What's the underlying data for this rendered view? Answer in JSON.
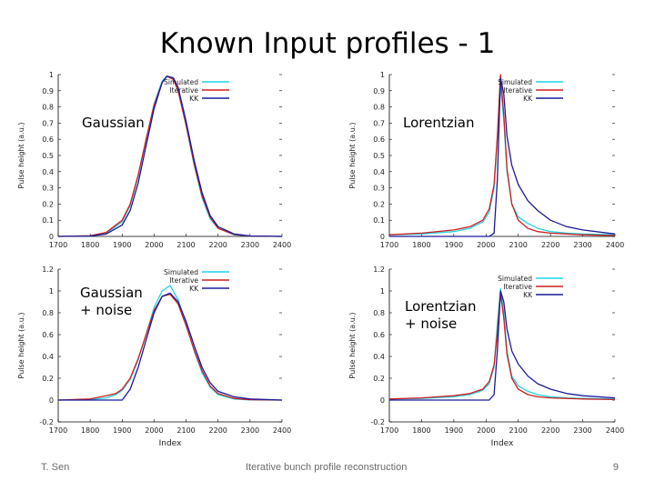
{
  "slide": {
    "title": "Known Input profiles - 1",
    "footer_left": "T. Sen",
    "footer_center": "Iterative bunch profile reconstruction",
    "page_number": "9"
  },
  "colors": {
    "simulated": "#1ed4e6",
    "iterative": "#cc2020",
    "kk": "#1a1a9a"
  },
  "chart_data": [
    {
      "type": "line",
      "overlay_label": "Gaussian",
      "xlabel": "",
      "ylabel": "Pulse height (a.u.)",
      "xlim": [
        1700,
        2400
      ],
      "ylim": [
        0,
        1
      ],
      "xticks": [
        1700,
        1800,
        1900,
        2000,
        2100,
        2200,
        2300,
        2400
      ],
      "yticks": [
        0,
        0.1,
        0.2,
        0.3,
        0.4,
        0.5,
        0.6,
        0.7,
        0.8,
        0.9,
        1
      ],
      "x": [
        1700,
        1800,
        1850,
        1900,
        1925,
        1950,
        1975,
        2000,
        2025,
        2040,
        2060,
        2075,
        2100,
        2125,
        2150,
        2175,
        2200,
        2250,
        2300,
        2400
      ],
      "series": [
        {
          "name": "Simulated",
          "color": "#1ed4e6",
          "values": [
            0,
            0.003,
            0.02,
            0.09,
            0.19,
            0.37,
            0.6,
            0.82,
            0.96,
            0.99,
            0.97,
            0.9,
            0.68,
            0.44,
            0.24,
            0.11,
            0.05,
            0.01,
            0.002,
            0
          ]
        },
        {
          "name": "Iterative",
          "color": "#cc2020",
          "values": [
            0,
            0.004,
            0.025,
            0.1,
            0.2,
            0.38,
            0.6,
            0.81,
            0.95,
            0.99,
            0.97,
            0.9,
            0.69,
            0.45,
            0.25,
            0.12,
            0.05,
            0.012,
            0.002,
            0
          ]
        },
        {
          "name": "KK",
          "color": "#1a1a9a",
          "values": [
            0,
            0.002,
            0.015,
            0.07,
            0.16,
            0.33,
            0.56,
            0.79,
            0.95,
            0.99,
            0.98,
            0.92,
            0.71,
            0.47,
            0.27,
            0.13,
            0.06,
            0.015,
            0.003,
            0
          ]
        }
      ]
    },
    {
      "type": "line",
      "overlay_label": "Lorentzian",
      "xlabel": "",
      "ylabel": "Pulse height (a.u.)",
      "xlim": [
        1700,
        2400
      ],
      "ylim": [
        0,
        1
      ],
      "xticks": [
        1700,
        1800,
        1900,
        2000,
        2100,
        2200,
        2300,
        2400
      ],
      "yticks": [
        0,
        0.1,
        0.2,
        0.3,
        0.4,
        0.5,
        0.6,
        0.7,
        0.8,
        0.9,
        1
      ],
      "x": [
        1700,
        1800,
        1900,
        1950,
        1990,
        2010,
        2025,
        2035,
        2045,
        2055,
        2065,
        2080,
        2100,
        2130,
        2160,
        2200,
        2250,
        2300,
        2400
      ],
      "series": [
        {
          "name": "Simulated",
          "color": "#1ed4e6",
          "values": [
            0.01,
            0.015,
            0.03,
            0.05,
            0.09,
            0.15,
            0.3,
            0.6,
            0.93,
            0.72,
            0.4,
            0.2,
            0.12,
            0.08,
            0.05,
            0.03,
            0.02,
            0.015,
            0.01
          ]
        },
        {
          "name": "Iterative",
          "color": "#cc2020",
          "values": [
            0.01,
            0.02,
            0.04,
            0.06,
            0.1,
            0.17,
            0.32,
            0.62,
            1,
            0.75,
            0.42,
            0.2,
            0.1,
            0.05,
            0.03,
            0.02,
            0.015,
            0.01,
            0.005
          ]
        },
        {
          "name": "KK",
          "color": "#1a1a9a",
          "values": [
            0,
            0,
            0,
            0,
            0,
            0,
            0.02,
            0.35,
            0.98,
            0.88,
            0.62,
            0.44,
            0.32,
            0.22,
            0.16,
            0.1,
            0.06,
            0.04,
            0.015
          ]
        }
      ]
    },
    {
      "type": "line",
      "overlay_label": "Gaussian\n+ noise",
      "xlabel": "Index",
      "ylabel": "Pulse height (a.u.)",
      "xlim": [
        1700,
        2400
      ],
      "ylim": [
        -0.2,
        1.2
      ],
      "xticks": [
        1700,
        1800,
        1900,
        2000,
        2100,
        2200,
        2300,
        2400
      ],
      "yticks": [
        -0.2,
        0,
        0.2,
        0.4,
        0.6,
        0.8,
        1,
        1.2
      ],
      "x": [
        1700,
        1800,
        1850,
        1880,
        1900,
        1925,
        1950,
        1975,
        2000,
        2025,
        2050,
        2075,
        2100,
        2125,
        2150,
        2175,
        2200,
        2250,
        2300,
        2400
      ],
      "series": [
        {
          "name": "Simulated",
          "color": "#1ed4e6",
          "values": [
            0,
            0.004,
            0.02,
            0.05,
            0.09,
            0.19,
            0.37,
            0.6,
            0.85,
            1,
            1.05,
            0.92,
            0.7,
            0.45,
            0.25,
            0.12,
            0.05,
            0.01,
            0.002,
            0
          ]
        },
        {
          "name": "Iterative",
          "color": "#cc2020",
          "values": [
            0,
            0.01,
            0.04,
            0.06,
            0.1,
            0.2,
            0.38,
            0.6,
            0.82,
            0.95,
            0.97,
            0.88,
            0.68,
            0.46,
            0.27,
            0.13,
            0.06,
            0.015,
            0.003,
            0
          ]
        },
        {
          "name": "KK",
          "color": "#1a1a9a",
          "values": [
            0,
            0,
            0,
            0,
            0,
            0.1,
            0.3,
            0.55,
            0.8,
            0.95,
            0.98,
            0.9,
            0.72,
            0.5,
            0.3,
            0.16,
            0.08,
            0.03,
            0.01,
            0
          ]
        }
      ]
    },
    {
      "type": "line",
      "overlay_label": "Lorentzian\n+ noise",
      "xlabel": "Index",
      "ylabel": "Pulse height (a.u.)",
      "xlim": [
        1700,
        2400
      ],
      "ylim": [
        -0.2,
        1.2
      ],
      "xticks": [
        1700,
        1800,
        1900,
        2000,
        2100,
        2200,
        2300,
        2400
      ],
      "yticks": [
        -0.2,
        0,
        0.2,
        0.4,
        0.6,
        0.8,
        1,
        1.2
      ],
      "x": [
        1700,
        1800,
        1900,
        1950,
        1990,
        2010,
        2025,
        2035,
        2045,
        2055,
        2065,
        2080,
        2100,
        2130,
        2160,
        2200,
        2250,
        2300,
        2400
      ],
      "series": [
        {
          "name": "Simulated",
          "color": "#1ed4e6",
          "values": [
            0.01,
            0.015,
            0.03,
            0.05,
            0.09,
            0.15,
            0.3,
            0.7,
            1.02,
            0.8,
            0.45,
            0.22,
            0.13,
            0.08,
            0.05,
            0.03,
            0.02,
            0.015,
            0.01
          ]
        },
        {
          "name": "Iterative",
          "color": "#cc2020",
          "values": [
            0.01,
            0.02,
            0.04,
            0.06,
            0.1,
            0.17,
            0.32,
            0.62,
            0.98,
            0.75,
            0.42,
            0.2,
            0.1,
            0.05,
            0.03,
            0.02,
            0.015,
            0.01,
            0.005
          ]
        },
        {
          "name": "KK",
          "color": "#1a1a9a",
          "values": [
            0,
            0,
            0,
            0,
            0,
            0,
            0.05,
            0.45,
            1.0,
            0.9,
            0.65,
            0.45,
            0.33,
            0.22,
            0.15,
            0.1,
            0.06,
            0.04,
            0.02
          ]
        }
      ]
    }
  ]
}
